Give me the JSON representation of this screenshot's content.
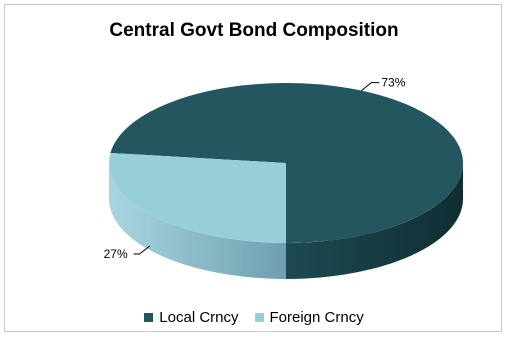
{
  "chart_data": {
    "type": "pie",
    "title": "Central Govt Bond Composition",
    "slices": [
      {
        "name": "Local Crncy",
        "value": 73,
        "label": "73%",
        "color": "#23565f",
        "side_dark": "#0f2e33",
        "side_light": "#1d4a52"
      },
      {
        "name": "Foreign Crncy",
        "value": 27,
        "label": "27%",
        "color": "#96ceda",
        "side_dark": "#6f9fb0",
        "side_light": "#a8d6e0"
      }
    ],
    "legend_position": "bottom",
    "style": "3d"
  }
}
